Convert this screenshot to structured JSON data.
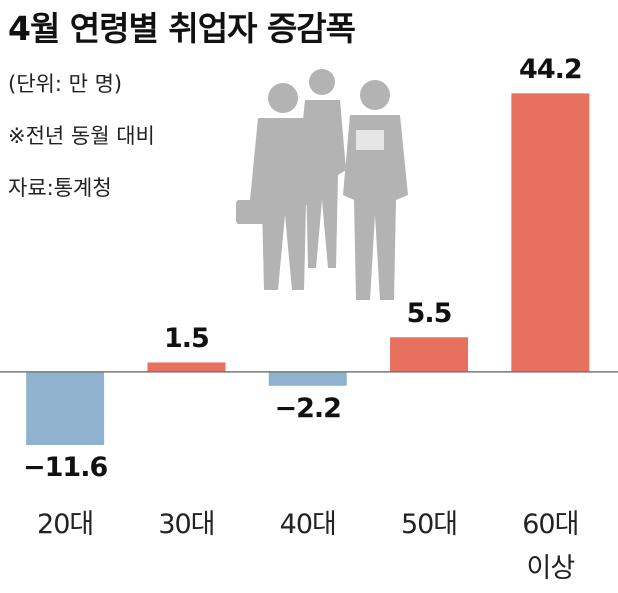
{
  "chart_data": {
    "type": "bar",
    "title": "4월 연령별 취업자 증감폭",
    "notes": [
      "(단위: 만 명)",
      "※전년 동월 대비",
      "자료:통계청"
    ],
    "categories": [
      "20대",
      "30대",
      "40대",
      "50대",
      "60대\n이상"
    ],
    "values": [
      -11.6,
      1.5,
      -2.2,
      5.5,
      44.2
    ],
    "value_labels": [
      "−11.6",
      "1.5",
      "−2.2",
      "5.5",
      "44.2"
    ],
    "positive_color": "#e8705f",
    "negative_color": "#8fb3cf",
    "ylim": [
      -13.5,
      46
    ]
  }
}
